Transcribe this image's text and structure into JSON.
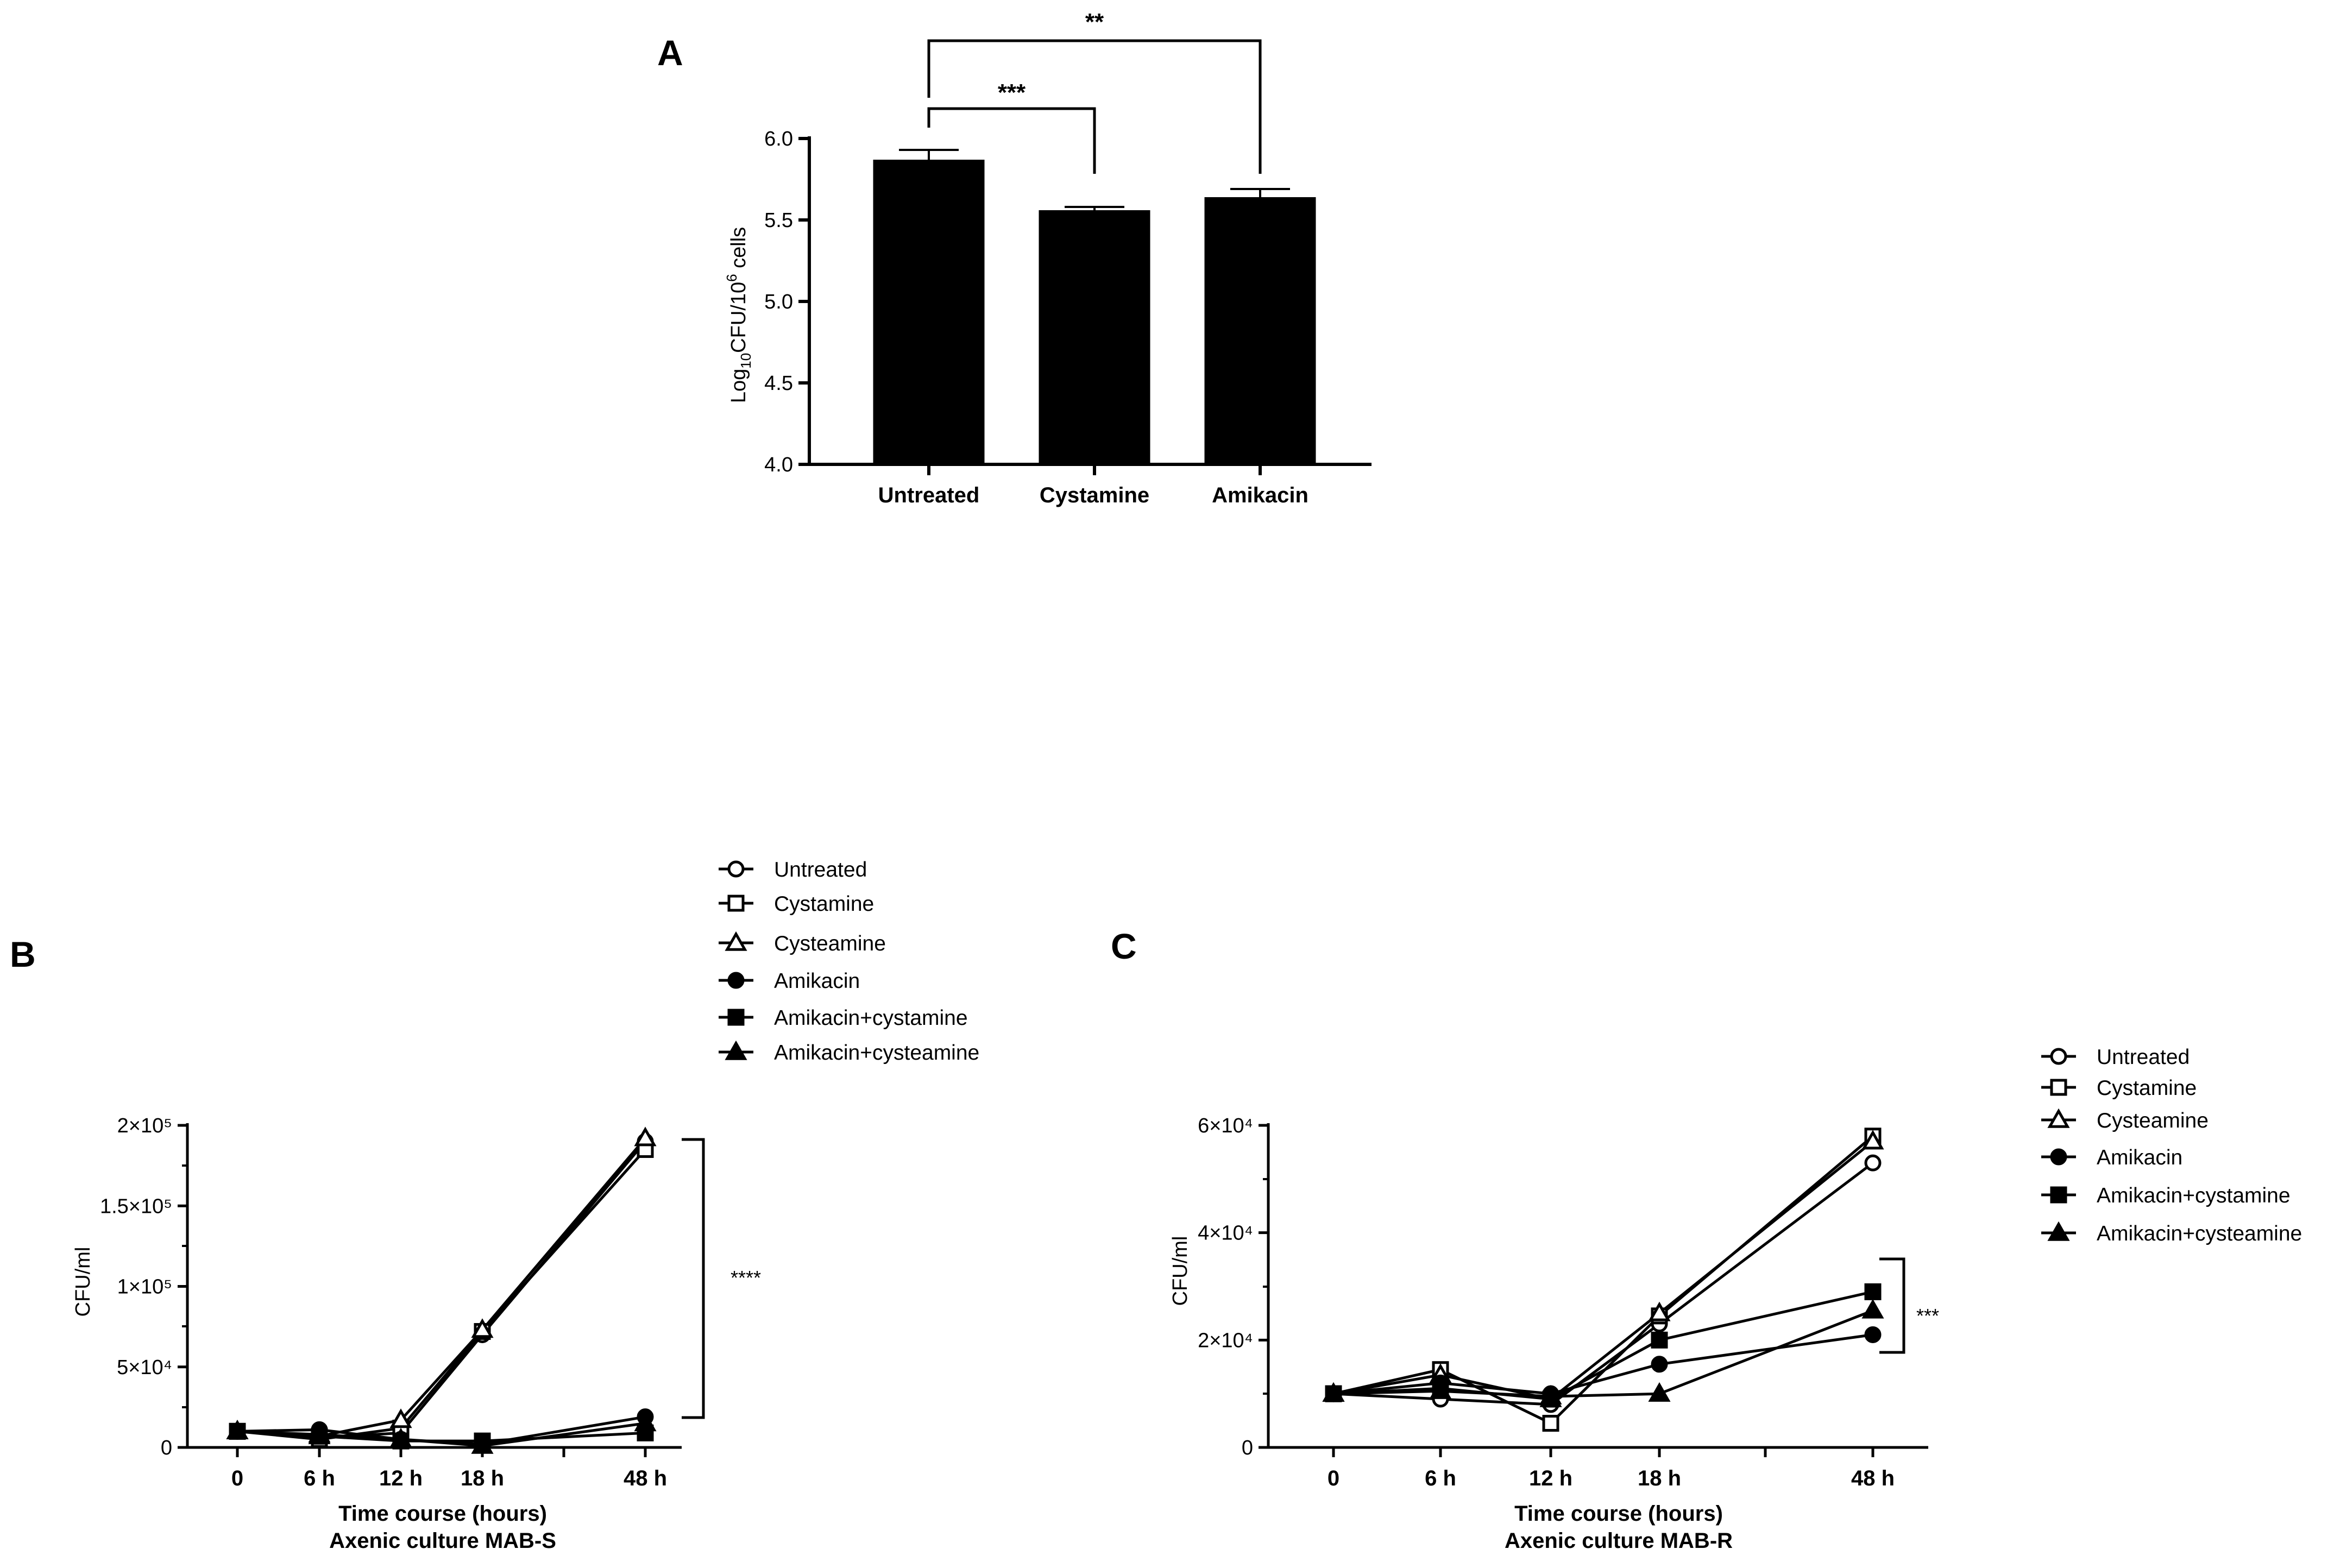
{
  "chart_data": [
    {
      "panel": "A",
      "type": "bar",
      "categories": [
        "Untreated",
        "Cystamine",
        "Amikacin"
      ],
      "values": [
        5.87,
        5.56,
        5.64
      ],
      "errors": [
        0.06,
        0.02,
        0.05
      ],
      "ylabel": "Log10CFU/10^6 cells",
      "ylabel_parts": {
        "base": "Log",
        "sub": "10",
        "mid": "CFU/10",
        "sup": "6",
        "end": " cells"
      },
      "ylim": [
        4.0,
        6.0
      ],
      "yticks": [
        "4.0",
        "4.5",
        "5.0",
        "5.5",
        "6.0"
      ],
      "bar_color": "#000000",
      "significance": [
        {
          "from": "Untreated",
          "to": "Cystamine",
          "label": "***"
        },
        {
          "from": "Untreated",
          "to": "Amikacin",
          "label": "**"
        }
      ]
    },
    {
      "panel": "B",
      "type": "line",
      "x": [
        "0",
        "6 h",
        "12 h",
        "18 h",
        "48 h"
      ],
      "ylabel": "CFU/ml",
      "xlabel": "Time course  (hours)",
      "subtitle": "Axenic culture MAB-S",
      "ylim": [
        0,
        200000
      ],
      "yticks": [
        {
          "value": 0,
          "label": "0"
        },
        {
          "value": 50000,
          "label": "5×10⁴"
        },
        {
          "value": 100000,
          "label": "1×10⁵"
        },
        {
          "value": 150000,
          "label": "1.5×10⁵"
        },
        {
          "value": 200000,
          "label": "2×10⁵"
        }
      ],
      "series": [
        {
          "name": "Untreated",
          "marker": "circle-open",
          "values": [
            10000,
            6000,
            9000,
            70000,
            190000
          ]
        },
        {
          "name": "Cystamine",
          "marker": "square-open",
          "values": [
            10000,
            5000,
            12000,
            72000,
            185000
          ]
        },
        {
          "name": "Cysteamine",
          "marker": "triangle-open",
          "values": [
            10000,
            7000,
            17000,
            73000,
            192000
          ]
        },
        {
          "name": "Amikacin",
          "marker": "circle-filled",
          "values": [
            10000,
            11000,
            5000,
            2000,
            19000
          ]
        },
        {
          "name": "Amikacin+cystamine",
          "marker": "square-filled",
          "values": [
            10000,
            7000,
            4000,
            4000,
            9000
          ]
        },
        {
          "name": "Amikacin+cysteamine",
          "marker": "triangle-filled",
          "values": [
            10000,
            8000,
            5000,
            1000,
            15000
          ]
        }
      ],
      "significance": {
        "label": "****"
      }
    },
    {
      "panel": "C",
      "type": "line",
      "x": [
        "0",
        "6 h",
        "12 h",
        "18 h",
        "48 h"
      ],
      "ylabel": "CFU/ml",
      "xlabel": "Time course  (hours)",
      "subtitle": "Axenic culture MAB-R",
      "ylim": [
        0,
        60000
      ],
      "yticks": [
        {
          "value": 0,
          "label": "0"
        },
        {
          "value": 20000,
          "label": "2×10⁴"
        },
        {
          "value": 40000,
          "label": "4×10⁴"
        },
        {
          "value": 60000,
          "label": "6×10⁴"
        }
      ],
      "series": [
        {
          "name": "Untreated",
          "marker": "circle-open",
          "values": [
            10000,
            9000,
            8000,
            23000,
            53000
          ]
        },
        {
          "name": "Cystamine",
          "marker": "square-open",
          "values": [
            10000,
            14500,
            4500,
            24500,
            58000
          ]
        },
        {
          "name": "Cysteamine",
          "marker": "triangle-open",
          "values": [
            10000,
            13500,
            9000,
            25000,
            57000
          ]
        },
        {
          "name": "Amikacin",
          "marker": "circle-filled",
          "values": [
            10000,
            12000,
            10000,
            15500,
            21000
          ]
        },
        {
          "name": "Amikacin+cystamine",
          "marker": "square-filled",
          "values": [
            10000,
            11000,
            9000,
            20000,
            29000
          ]
        },
        {
          "name": "Amikacin+cysteamine",
          "marker": "triangle-filled",
          "values": [
            10000,
            10500,
            9500,
            10000,
            25500
          ]
        }
      ],
      "significance": {
        "label": "***"
      }
    }
  ]
}
